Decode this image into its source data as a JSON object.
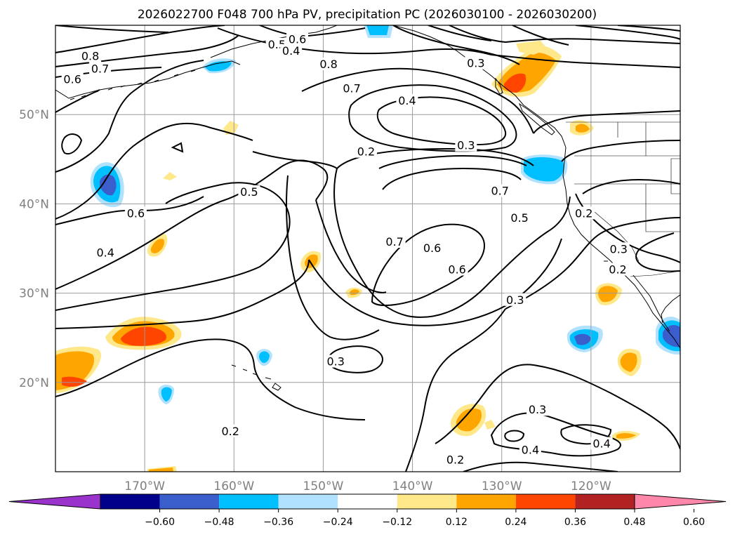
{
  "chart_data": {
    "type": "contour-map",
    "title": "2026022700 F048 700 hPa PV, precipitation PC (2026030100 - 2026030200)",
    "lon_range": [
      180,
      110
    ],
    "lat_range": [
      10,
      60
    ],
    "x_ticks": [
      {
        "value": 170,
        "label": "170°W"
      },
      {
        "value": 160,
        "label": "160°W"
      },
      {
        "value": 150,
        "label": "150°W"
      },
      {
        "value": 140,
        "label": "140°W"
      },
      {
        "value": 130,
        "label": "130°W"
      },
      {
        "value": 120,
        "label": "120°W"
      }
    ],
    "y_ticks": [
      {
        "value": 50,
        "label": "50°N"
      },
      {
        "value": 40,
        "label": "40°N"
      },
      {
        "value": 30,
        "label": "30°N"
      },
      {
        "value": 20,
        "label": "20°N"
      }
    ],
    "colorbar": {
      "extend": "both",
      "ticks": [
        "−0.60",
        "−0.48",
        "−0.36",
        "−0.24",
        "−0.12",
        "0.12",
        "0.24",
        "0.36",
        "0.48",
        "0.60"
      ],
      "colors": [
        "#9933cc",
        "#00008b",
        "#3a5fcd",
        "#00bfff",
        "#b0e2ff",
        "#ffffff",
        "#ffe88a",
        "#ffa500",
        "#ff4500",
        "#b22222",
        "#ff88aa"
      ]
    },
    "contour_labels": [
      {
        "text": "0.8",
        "lon": 149.4,
        "lat": 55.6
      },
      {
        "text": "0.7",
        "lon": 146.8,
        "lat": 52.9
      },
      {
        "text": "0.4",
        "lon": 140.6,
        "lat": 51.5
      },
      {
        "text": "0.3",
        "lon": 134.0,
        "lat": 46.5
      },
      {
        "text": "0.2",
        "lon": 145.2,
        "lat": 45.8
      },
      {
        "text": "0.7",
        "lon": 130.2,
        "lat": 41.4
      },
      {
        "text": "0.5",
        "lon": 158.3,
        "lat": 41.3
      },
      {
        "text": "0.6",
        "lon": 171.0,
        "lat": 38.9
      },
      {
        "text": "0.8",
        "lon": 176.1,
        "lat": 56.5
      },
      {
        "text": "0.7",
        "lon": 175.0,
        "lat": 55.1
      },
      {
        "text": "0.6",
        "lon": 178.1,
        "lat": 53.9
      },
      {
        "text": "0.4",
        "lon": 174.4,
        "lat": 34.5
      },
      {
        "text": "0.7",
        "lon": 142.0,
        "lat": 35.7
      },
      {
        "text": "0.6",
        "lon": 135.0,
        "lat": 32.6
      },
      {
        "text": "0.5",
        "lon": 128.0,
        "lat": 38.4
      },
      {
        "text": "0.3",
        "lon": 128.5,
        "lat": 29.2
      },
      {
        "text": "0.3",
        "lon": 132.9,
        "lat": 55.7
      },
      {
        "text": "0.6",
        "lon": 137.8,
        "lat": 35.0
      },
      {
        "text": "0.5",
        "lon": 155.2,
        "lat": 57.8
      },
      {
        "text": "0.4",
        "lon": 153.6,
        "lat": 57.1
      },
      {
        "text": "0.6",
        "lon": 152.9,
        "lat": 58.4
      },
      {
        "text": "0.2",
        "lon": 120.8,
        "lat": 38.9
      },
      {
        "text": "0.3",
        "lon": 116.9,
        "lat": 34.9
      },
      {
        "text": "0.2",
        "lon": 117.0,
        "lat": 32.6
      },
      {
        "text": "0.3",
        "lon": 148.6,
        "lat": 22.3
      },
      {
        "text": "0.2",
        "lon": 160.4,
        "lat": 14.5
      },
      {
        "text": "0.3",
        "lon": 126.0,
        "lat": 16.9
      },
      {
        "text": "0.4",
        "lon": 126.8,
        "lat": 12.4
      },
      {
        "text": "0.4",
        "lon": 118.8,
        "lat": 13.1
      },
      {
        "text": "0.2",
        "lon": 135.2,
        "lat": 11.3
      }
    ]
  }
}
